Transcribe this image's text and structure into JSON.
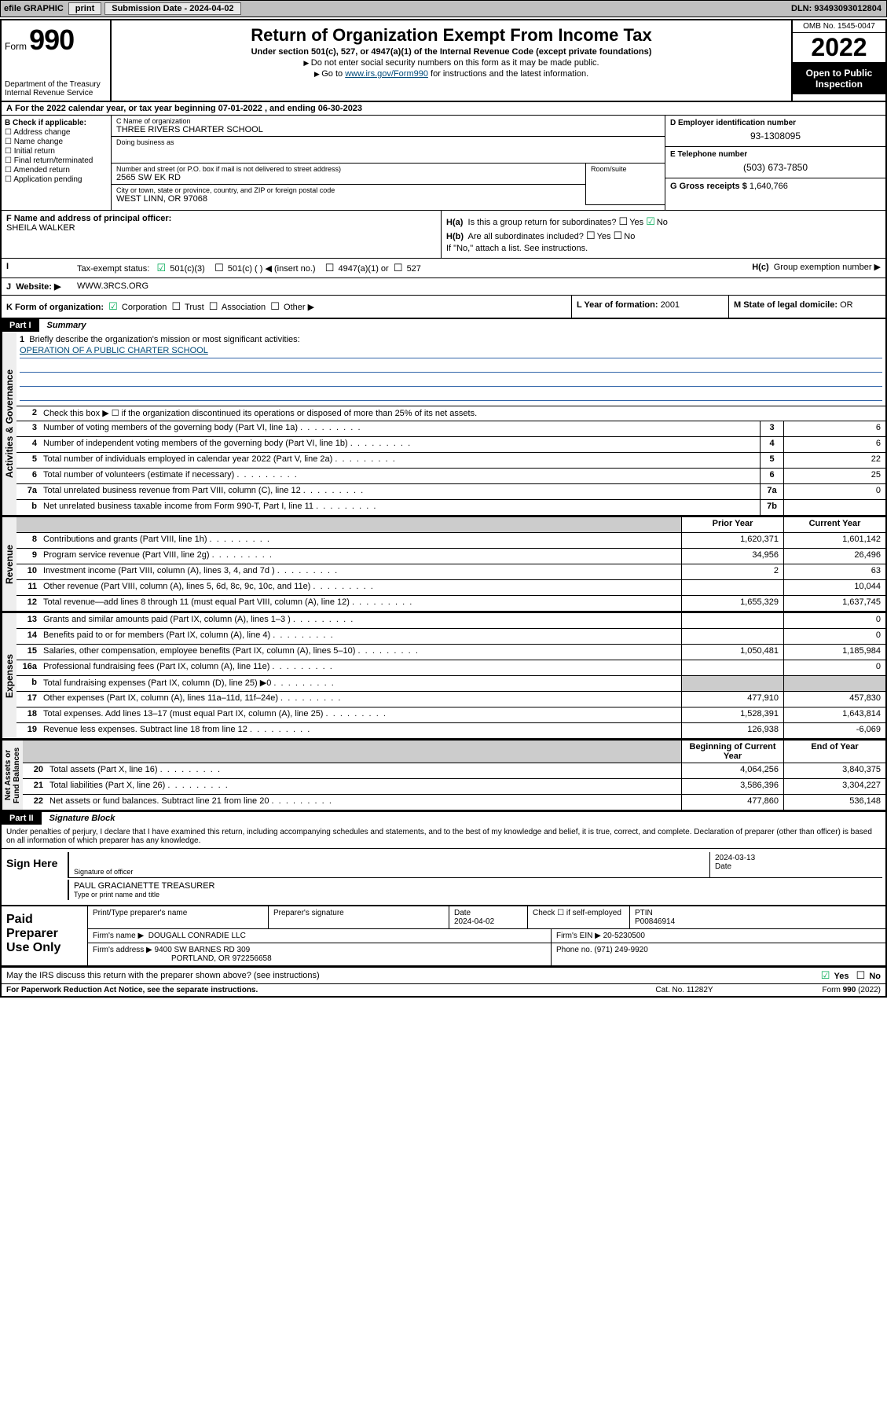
{
  "topbar": {
    "efile": "efile GRAPHIC",
    "print": "print",
    "submission_label": "Submission Date -",
    "submission_date": "2024-04-02",
    "dln_label": "DLN:",
    "dln": "93493093012804"
  },
  "header": {
    "form_word": "Form",
    "form_no": "990",
    "title": "Return of Organization Exempt From Income Tax",
    "subtitle": "Under section 501(c), 527, or 4947(a)(1) of the Internal Revenue Code (except private foundations)",
    "note1": "Do not enter social security numbers on this form as it may be made public.",
    "note2_pre": "Go to ",
    "note2_link": "www.irs.gov/Form990",
    "note2_post": " for instructions and the latest information.",
    "dept": "Department of the Treasury\nInternal Revenue Service",
    "omb": "OMB No. 1545-0047",
    "year": "2022",
    "open_public": "Open to Public Inspection"
  },
  "row_a": "For the 2022 calendar year, or tax year beginning 07-01-2022   , and ending 06-30-2023",
  "col_b": {
    "heading": "B Check if applicable:",
    "opts": [
      "Address change",
      "Name change",
      "Initial return",
      "Final return/terminated",
      "Amended return",
      "Application pending"
    ]
  },
  "col_c": {
    "c_label": "C Name of organization",
    "org_name": "THREE RIVERS CHARTER SCHOOL",
    "dba_label": "Doing business as",
    "street_label": "Number and street (or P.O. box if mail is not delivered to street address)",
    "street": "2565 SW EK RD",
    "suite_label": "Room/suite",
    "city_label": "City or town, state or province, country, and ZIP or foreign postal code",
    "city": "WEST LINN, OR  97068"
  },
  "col_de": {
    "d_label": "D Employer identification number",
    "ein": "93-1308095",
    "e_label": "E Telephone number",
    "phone": "(503) 673-7850",
    "g_label": "G Gross receipts $",
    "gross": "1,640,766"
  },
  "row_f": {
    "label": "F Name and address of principal officer:",
    "name": "SHEILA WALKER"
  },
  "row_h": {
    "ha": "Is this a group return for subordinates?",
    "hb": "Are all subordinates included?",
    "hb_note": "If \"No,\" attach a list. See instructions.",
    "hc": "Group exemption number ▶",
    "yes": "Yes",
    "no": "No"
  },
  "row_i": {
    "label": "Tax-exempt status:",
    "o1": "501(c)(3)",
    "o2": "501(c) (   ) ◀ (insert no.)",
    "o3": "4947(a)(1) or",
    "o4": "527"
  },
  "row_j": {
    "label": "Website: ▶",
    "val": "WWW.3RCS.ORG"
  },
  "row_k": {
    "label": "K Form of organization:",
    "o1": "Corporation",
    "o2": "Trust",
    "o3": "Association",
    "o4": "Other ▶"
  },
  "row_l": {
    "label": "L Year of formation:",
    "val": "2001"
  },
  "row_m": {
    "label": "M State of legal domicile:",
    "val": "OR"
  },
  "part1": {
    "num": "Part I",
    "title": "Summary",
    "q1": "Briefly describe the organization's mission or most significant activities:",
    "mission": "OPERATION OF A PUBLIC CHARTER SCHOOL",
    "q2": "Check this box ▶ ☐  if the organization discontinued its operations or disposed of more than 25% of its net assets.",
    "lines_gov": [
      {
        "n": "3",
        "d": "Number of voting members of the governing body (Part VI, line 1a)",
        "box": "3",
        "v": "6"
      },
      {
        "n": "4",
        "d": "Number of independent voting members of the governing body (Part VI, line 1b)",
        "box": "4",
        "v": "6"
      },
      {
        "n": "5",
        "d": "Total number of individuals employed in calendar year 2022 (Part V, line 2a)",
        "box": "5",
        "v": "22"
      },
      {
        "n": "6",
        "d": "Total number of volunteers (estimate if necessary)",
        "box": "6",
        "v": "25"
      },
      {
        "n": "7a",
        "d": "Total unrelated business revenue from Part VIII, column (C), line 12",
        "box": "7a",
        "v": "0"
      },
      {
        "n": "b",
        "d": "Net unrelated business taxable income from Form 990-T, Part I, line 11",
        "box": "7b",
        "v": ""
      }
    ],
    "col_hdr_prior": "Prior Year",
    "col_hdr_current": "Current Year",
    "lines_rev": [
      {
        "n": "8",
        "d": "Contributions and grants (Part VIII, line 1h)",
        "p": "1,620,371",
        "c": "1,601,142"
      },
      {
        "n": "9",
        "d": "Program service revenue (Part VIII, line 2g)",
        "p": "34,956",
        "c": "26,496"
      },
      {
        "n": "10",
        "d": "Investment income (Part VIII, column (A), lines 3, 4, and 7d )",
        "p": "2",
        "c": "63"
      },
      {
        "n": "11",
        "d": "Other revenue (Part VIII, column (A), lines 5, 6d, 8c, 9c, 10c, and 11e)",
        "p": "",
        "c": "10,044"
      },
      {
        "n": "12",
        "d": "Total revenue—add lines 8 through 11 (must equal Part VIII, column (A), line 12)",
        "p": "1,655,329",
        "c": "1,637,745"
      }
    ],
    "lines_exp": [
      {
        "n": "13",
        "d": "Grants and similar amounts paid (Part IX, column (A), lines 1–3 )",
        "p": "",
        "c": "0"
      },
      {
        "n": "14",
        "d": "Benefits paid to or for members (Part IX, column (A), line 4)",
        "p": "",
        "c": "0"
      },
      {
        "n": "15",
        "d": "Salaries, other compensation, employee benefits (Part IX, column (A), lines 5–10)",
        "p": "1,050,481",
        "c": "1,185,984"
      },
      {
        "n": "16a",
        "d": "Professional fundraising fees (Part IX, column (A), line 11e)",
        "p": "",
        "c": "0"
      },
      {
        "n": "b",
        "d": "Total fundraising expenses (Part IX, column (D), line 25) ▶0",
        "p": "__grey__",
        "c": "__grey__"
      },
      {
        "n": "17",
        "d": "Other expenses (Part IX, column (A), lines 11a–11d, 11f–24e)",
        "p": "477,910",
        "c": "457,830"
      },
      {
        "n": "18",
        "d": "Total expenses. Add lines 13–17 (must equal Part IX, column (A), line 25)",
        "p": "1,528,391",
        "c": "1,643,814"
      },
      {
        "n": "19",
        "d": "Revenue less expenses. Subtract line 18 from line 12",
        "p": "126,938",
        "c": "-6,069"
      }
    ],
    "col_hdr_begin": "Beginning of Current Year",
    "col_hdr_end": "End of Year",
    "lines_bal": [
      {
        "n": "20",
        "d": "Total assets (Part X, line 16)",
        "p": "4,064,256",
        "c": "3,840,375"
      },
      {
        "n": "21",
        "d": "Total liabilities (Part X, line 26)",
        "p": "3,586,396",
        "c": "3,304,227"
      },
      {
        "n": "22",
        "d": "Net assets or fund balances. Subtract line 21 from line 20",
        "p": "477,860",
        "c": "536,148"
      }
    ],
    "vtabs": {
      "gov": "Activities & Governance",
      "rev": "Revenue",
      "exp": "Expenses",
      "bal": "Net Assets or\nFund Balances"
    }
  },
  "part2": {
    "num": "Part II",
    "title": "Signature Block",
    "declaration": "Under penalties of perjury, I declare that I have examined this return, including accompanying schedules and statements, and to the best of my knowledge and belief, it is true, correct, and complete. Declaration of preparer (other than officer) is based on all information of which preparer has any knowledge.",
    "sign_here": "Sign Here",
    "sig_officer": "Signature of officer",
    "sig_date": "2024-03-13",
    "date_lbl": "Date",
    "officer_name": "PAUL GRACIANETTE  TREASURER",
    "type_name": "Type or print name and title",
    "paid": "Paid Preparer Use Only",
    "prep_name_lbl": "Print/Type preparer's name",
    "prep_sig_lbl": "Preparer's signature",
    "prep_date_lbl": "Date",
    "prep_date": "2024-04-02",
    "check_self": "Check ☐ if self-employed",
    "ptin_lbl": "PTIN",
    "ptin": "P00846914",
    "firm_name_lbl": "Firm's name    ▶",
    "firm_name": "DOUGALL CONRADIE LLC",
    "firm_ein_lbl": "Firm's EIN ▶",
    "firm_ein": "20-5230500",
    "firm_addr_lbl": "Firm's address ▶",
    "firm_addr1": "9400 SW BARNES RD 309",
    "firm_addr2": "PORTLAND, OR  972256658",
    "phone_lbl": "Phone no.",
    "phone": "(971) 249-9920",
    "may_irs": "May the IRS discuss this return with the preparer shown above? (see instructions)"
  },
  "footer": {
    "paperwork": "For Paperwork Reduction Act Notice, see the separate instructions.",
    "cat": "Cat. No. 11282Y",
    "form": "Form 990 (2022)"
  }
}
